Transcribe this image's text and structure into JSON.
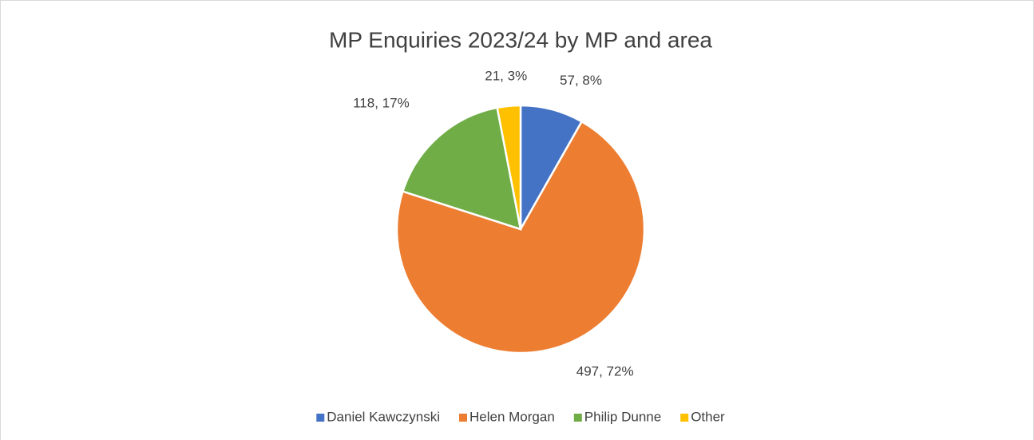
{
  "chart_data": {
    "type": "pie",
    "title": "MP Enquiries 2023/24 by MP and area",
    "categories": [
      "Daniel Kawczynski",
      "Helen Morgan",
      "Philip Dunne",
      "Other"
    ],
    "values": [
      57,
      497,
      118,
      21
    ],
    "value_labels": [
      "57, 8%",
      "497, 72%",
      "118, 17%",
      "21, 3%"
    ],
    "colors": [
      "#4472c4",
      "#ed7d31",
      "#70ad47",
      "#ffc000"
    ],
    "legend": "bottom"
  }
}
